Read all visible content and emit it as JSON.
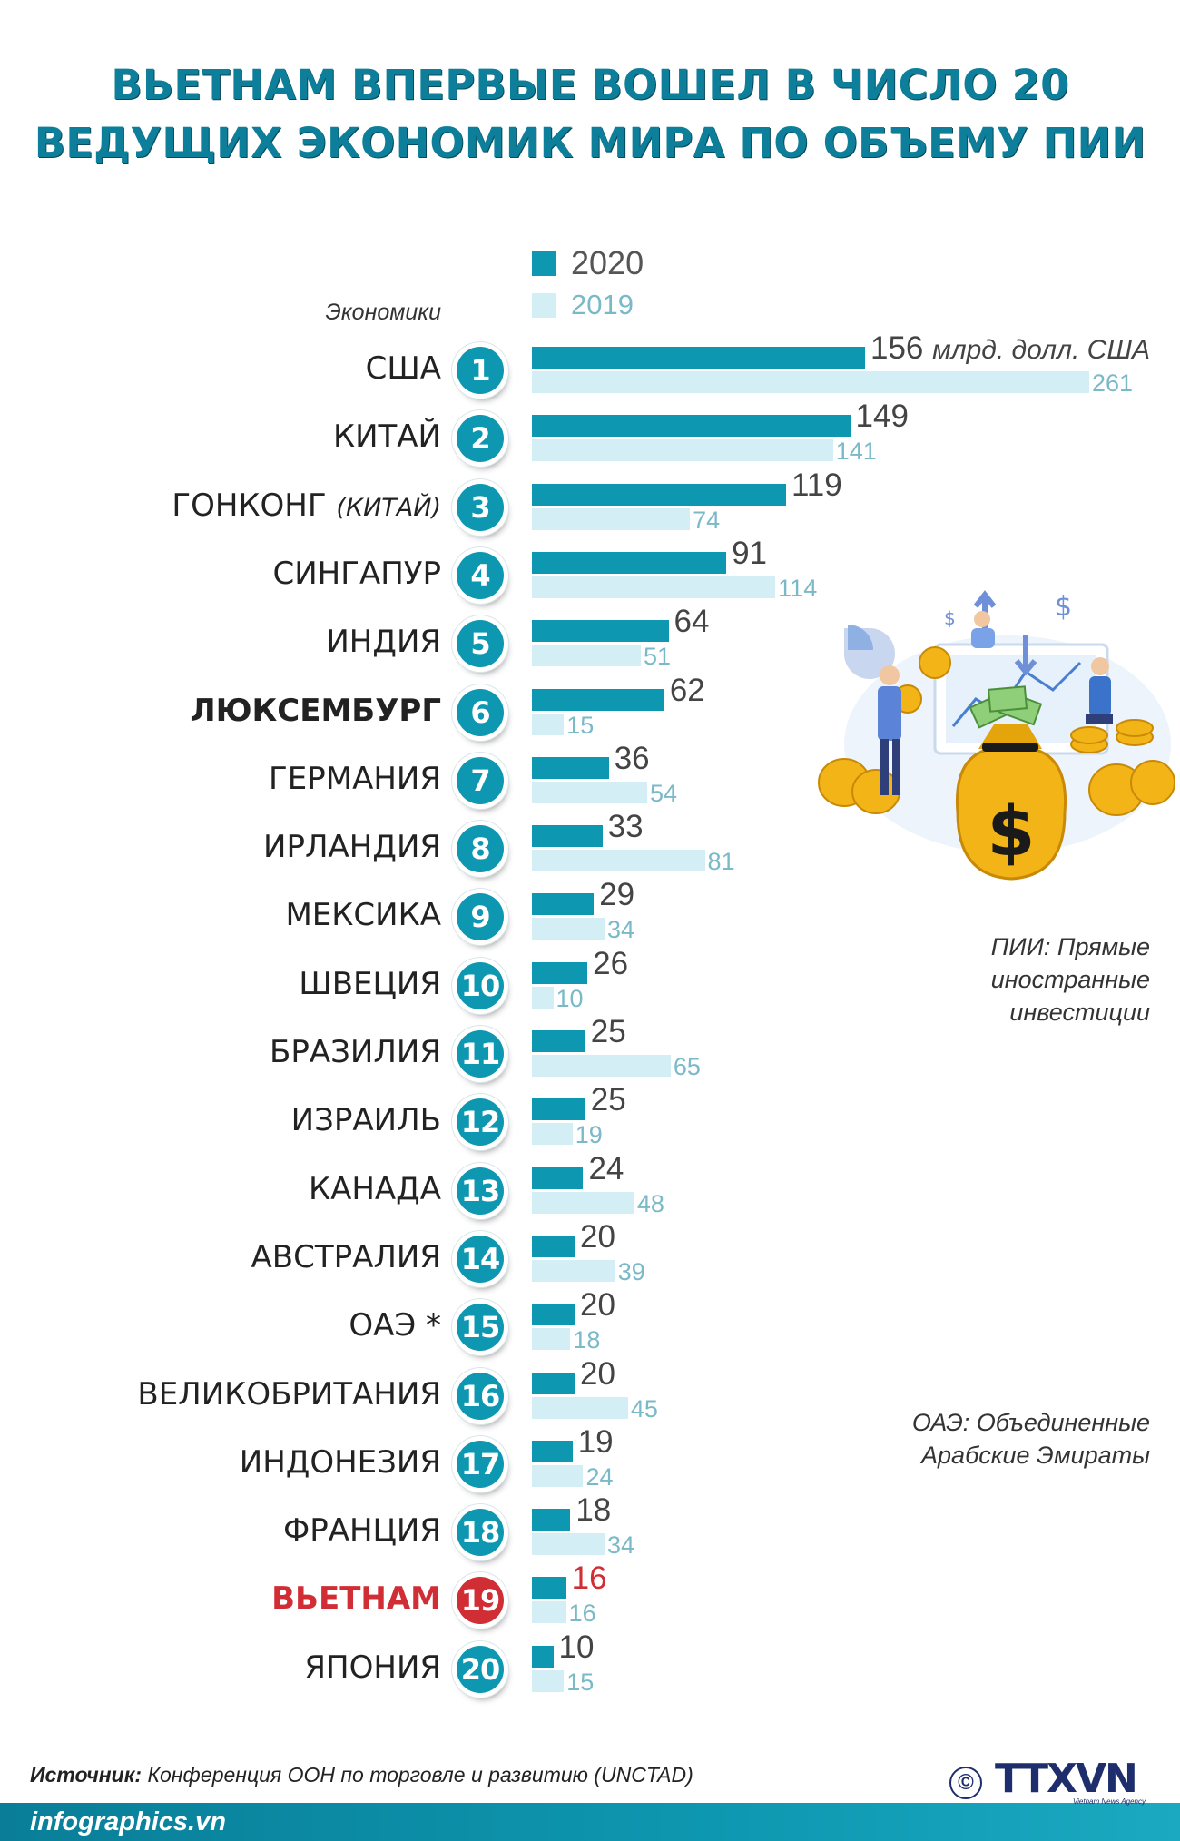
{
  "title": {
    "line1": "ВЬЕТНАМ ВПЕРВЫЕ ВОШЕЛ В ЧИСЛО 20",
    "line2": "ВЕДУЩИХ ЭКОНОМИК МИРА ПО ОБЪЕМУ ПИИ"
  },
  "legend": [
    {
      "label": "2020",
      "color": "#0e97b0"
    },
    {
      "label": "2019",
      "color": "#d3eef5"
    }
  ],
  "economies_label": "Экономики",
  "unit_label": "млрд. долл. США",
  "notes": {
    "fdi": [
      "ПИИ: Прямые",
      "иностранные",
      "инвестиции"
    ],
    "uae": [
      "ОАЭ: Объединенные",
      "Арабские Эмираты"
    ]
  },
  "source": {
    "label": "Источник:",
    "text": " Конференция ООН по торговле и развитию  (UNCTAD)"
  },
  "site": "infographics.vn",
  "copyright": "©",
  "logo": {
    "text": "TTXVN",
    "subtitle": "Vietnam News Agency"
  },
  "colors": {
    "accent": "#0e97b0",
    "bar_2019": "#d3eef5",
    "highlight": "#d12d35",
    "title": "#0e7f9a",
    "logo": "#1e2e6d"
  },
  "chart_data": {
    "type": "bar",
    "orientation": "horizontal",
    "categories": [
      {
        "rank": "1",
        "name": "США",
        "sub": ""
      },
      {
        "rank": "2",
        "name": "КИТАЙ",
        "sub": ""
      },
      {
        "rank": "3",
        "name": "ГОНКОНГ ",
        "sub": "(КИТАЙ)"
      },
      {
        "rank": "4",
        "name": "СИНГАПУР",
        "sub": ""
      },
      {
        "rank": "5",
        "name": "ИНДИЯ",
        "sub": ""
      },
      {
        "rank": "6",
        "name": "ЛЮКСЕМБУРГ",
        "sub": "",
        "bold": true
      },
      {
        "rank": "7",
        "name": "ГЕРМАНИЯ",
        "sub": ""
      },
      {
        "rank": "8",
        "name": "ИРЛАНДИЯ",
        "sub": ""
      },
      {
        "rank": "9",
        "name": "МЕКСИКА",
        "sub": ""
      },
      {
        "rank": "10",
        "name": "ШВЕЦИЯ",
        "sub": ""
      },
      {
        "rank": "11",
        "name": "БРАЗИЛИЯ",
        "sub": ""
      },
      {
        "rank": "12",
        "name": "ИЗРАИЛЬ",
        "sub": ""
      },
      {
        "rank": "13",
        "name": "КАНАДА",
        "sub": ""
      },
      {
        "rank": "14",
        "name": "АВСТРАЛИЯ",
        "sub": ""
      },
      {
        "rank": "15",
        "name": "ОАЭ *",
        "sub": ""
      },
      {
        "rank": "16",
        "name": "ВЕЛИКОБРИТАНИЯ",
        "sub": ""
      },
      {
        "rank": "17",
        "name": "ИНДОНЕЗИЯ",
        "sub": ""
      },
      {
        "rank": "18",
        "name": "ФРАНЦИЯ",
        "sub": ""
      },
      {
        "rank": "19",
        "name": "ВЬЕТНАМ",
        "sub": "",
        "highlight": true
      },
      {
        "rank": "20",
        "name": "ЯПОНИЯ",
        "sub": ""
      }
    ],
    "series": [
      {
        "name": "2020",
        "values": [
          156,
          149,
          119,
          91,
          64,
          62,
          36,
          33,
          29,
          26,
          25,
          25,
          24,
          20,
          20,
          20,
          19,
          18,
          16,
          10
        ]
      },
      {
        "name": "2019",
        "values": [
          261,
          141,
          74,
          114,
          51,
          15,
          54,
          81,
          34,
          10,
          65,
          19,
          48,
          39,
          18,
          45,
          24,
          34,
          16,
          15
        ]
      }
    ],
    "xlim": [
      0,
      261
    ],
    "grid": false,
    "legend_position": "top"
  }
}
